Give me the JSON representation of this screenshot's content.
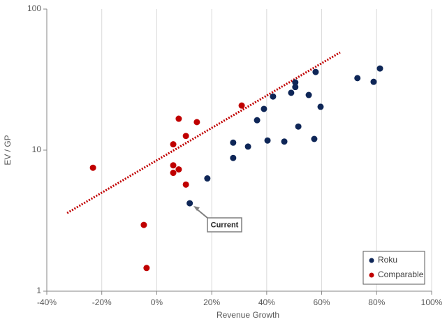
{
  "chart_data": {
    "type": "scatter",
    "x_label": "Revenue Growth",
    "y_label": "EV / GP",
    "xlim": [
      -40,
      100
    ],
    "ylim": [
      1,
      100
    ],
    "log_y": true,
    "grid_x": true,
    "xticks": [
      {
        "value": -40,
        "label": "-40%"
      },
      {
        "value": -20,
        "label": "-20%"
      },
      {
        "value": 0,
        "label": "0%"
      },
      {
        "value": 20,
        "label": "20%"
      },
      {
        "value": 40,
        "label": "40%"
      },
      {
        "value": 60,
        "label": "60%"
      },
      {
        "value": 80,
        "label": "80%"
      },
      {
        "value": 100,
        "label": "100%"
      }
    ],
    "yticks": [
      1,
      10,
      100
    ],
    "legend": "lower right",
    "series": [
      {
        "name": "Roku",
        "color": "#0e2657",
        "x": [
          12,
          18.4,
          27.8,
          27.8,
          33.2,
          36.5,
          39,
          40.3,
          42.3,
          46.4,
          48.9,
          50.4,
          50.4,
          51.5,
          55.3,
          57.3,
          57.8,
          59.6,
          73,
          78.9,
          81.2
        ],
        "values": [
          4.2,
          6.3,
          8.8,
          11.3,
          10.6,
          16.3,
          19.6,
          11.7,
          24,
          11.5,
          25.5,
          30.2,
          28,
          14.7,
          24.6,
          12,
          35.8,
          20.3,
          32.4,
          30.5,
          37.9
        ]
      },
      {
        "name": "Comparable",
        "color": "#c00000",
        "x": [
          -23.2,
          -4.7,
          -3.7,
          6,
          6,
          6,
          8,
          8,
          10.6,
          10.6,
          14.6,
          30.9
        ],
        "values": [
          7.5,
          2.95,
          1.46,
          11,
          7.8,
          6.9,
          16.7,
          7.3,
          12.6,
          5.7,
          15.8,
          20.7
        ]
      }
    ],
    "trendline": {
      "color": "#c00000",
      "x": [
        -32.6,
        66.7
      ],
      "y": [
        3.58,
        49.3
      ]
    },
    "annotations": [
      "Current"
    ]
  }
}
